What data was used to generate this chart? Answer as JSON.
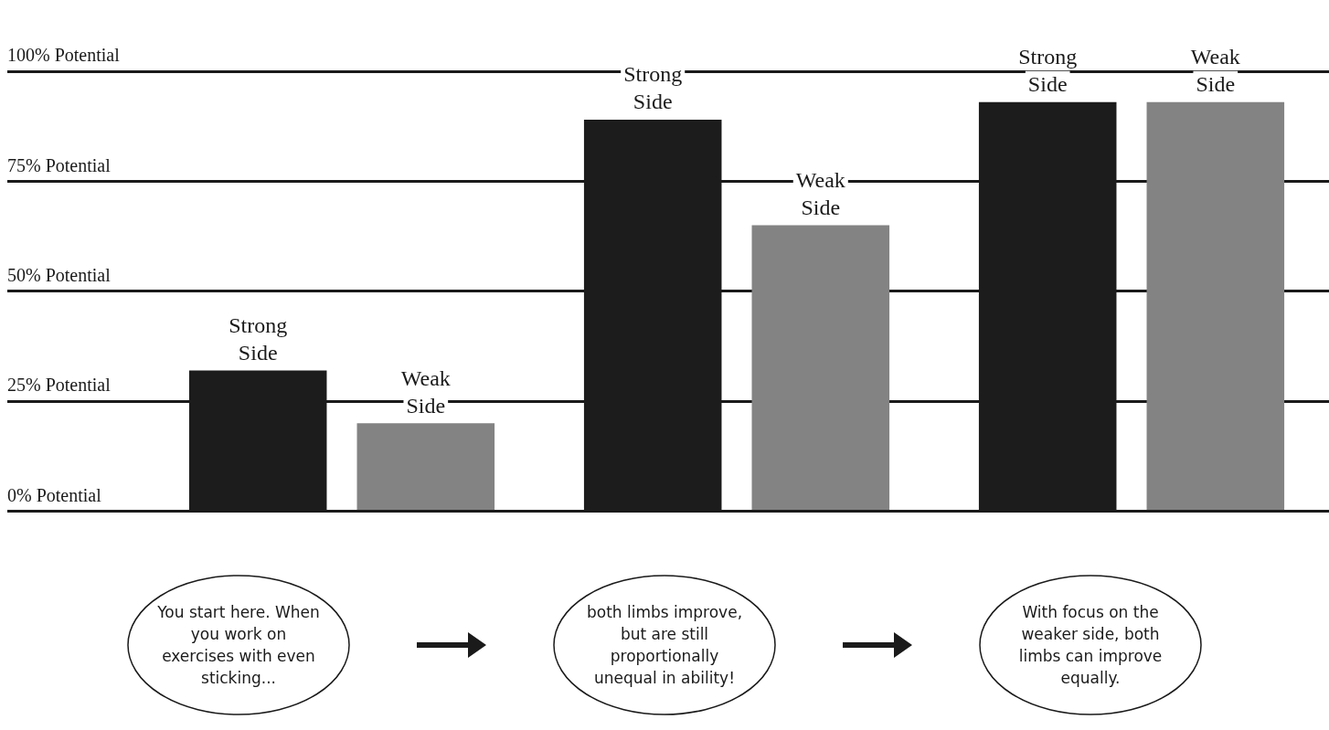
{
  "chart_data": {
    "type": "bar",
    "categories": [
      null,
      null,
      null
    ],
    "series": [
      {
        "name": "Strong Side",
        "color": "#1c1c1c",
        "values": [
          32,
          89,
          93
        ]
      },
      {
        "name": "Weak Side",
        "color": "#838383",
        "values": [
          20,
          65,
          93
        ]
      }
    ],
    "ylim": [
      0,
      100
    ],
    "yticks": [
      {
        "value": 0,
        "label": "0% Potential"
      },
      {
        "value": 25,
        "label": "25% Potential"
      },
      {
        "value": 50,
        "label": "50% Potential"
      },
      {
        "value": 75,
        "label": "75% Potential"
      },
      {
        "value": 100,
        "label": "100% Potential"
      }
    ],
    "grid": "y",
    "legend": false,
    "annotations": [
      "You start here. When you work on exercises with even sticking...",
      "both limbs improve, but are still proportionally unequal in ability!",
      "With focus on the weaker side, both limbs can improve equally."
    ]
  }
}
